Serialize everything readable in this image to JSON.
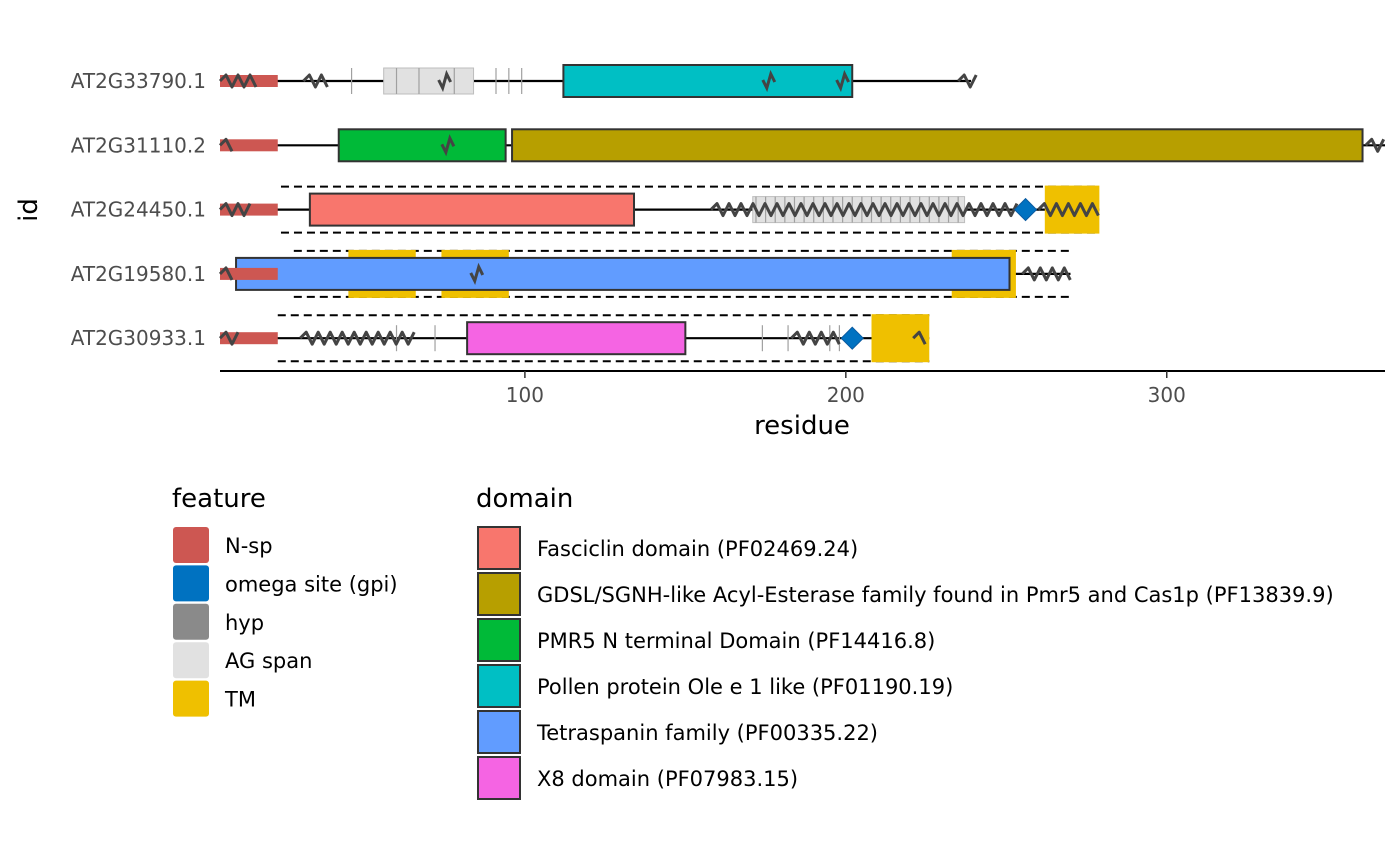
{
  "chart_data": {
    "type": "domain-architecture",
    "xlabel": "residue",
    "ylabel": "id",
    "xlim": [
      5,
      368
    ],
    "x_ticks": [
      100,
      200,
      300
    ],
    "grid": false,
    "proteins": [
      {
        "id": "AT2G33790.1",
        "length": 239,
        "signal": [
          1,
          23
        ],
        "domains": [
          {
            "name": "Pollen protein Ole e 1 like (PF01190.19)",
            "start": 112,
            "end": 202
          }
        ],
        "ag_spans": [
          [
            56,
            84
          ]
        ],
        "hyp": [
          46,
          60,
          67,
          78,
          91,
          95,
          99
        ],
        "tm": [],
        "omega": null,
        "gpi_span": null,
        "wavy": [
          [
            5,
            17
          ],
          [
            31,
            39
          ],
          [
            235,
            241
          ]
        ],
        "ticks": [
          75,
          176,
          199
        ]
      },
      {
        "id": "AT2G31110.2",
        "length": 368,
        "signal": [
          1,
          23
        ],
        "domains": [
          {
            "name": "PMR5 N terminal Domain (PF14416.8)",
            "start": 42,
            "end": 94
          },
          {
            "name": "GDSL/SGNH-like Acyl-Esterase family found in Pmr5 and Cas1p (PF13839.9)",
            "start": 96,
            "end": 361
          }
        ],
        "ag_spans": [],
        "hyp": [],
        "tm": [],
        "omega": null,
        "gpi_span": null,
        "wavy": [
          [
            5,
            9
          ],
          [
            362,
            368
          ]
        ],
        "ticks": [
          76
        ]
      },
      {
        "id": "AT2G24450.1",
        "length": 279,
        "signal": [
          1,
          23
        ],
        "domains": [
          {
            "name": "Fasciclin domain (PF02469.24)",
            "start": 33,
            "end": 134
          }
        ],
        "ag_spans": [
          [
            171,
            237
          ]
        ],
        "hyp": [
          172,
          175,
          178,
          181,
          184,
          187,
          190,
          193,
          196,
          199,
          202,
          205,
          208,
          211,
          214,
          217,
          220,
          223,
          226,
          229,
          232,
          235
        ],
        "tm": [
          [
            262,
            279
          ]
        ],
        "omega": 256,
        "gpi_span": [
          24,
          279
        ],
        "wavy": [
          [
            5,
            15
          ],
          [
            158,
            254
          ],
          [
            260,
            279
          ]
        ],
        "ticks": []
      },
      {
        "id": "AT2G19580.1",
        "length": 270,
        "signal": [
          1,
          23
        ],
        "domains": [
          {
            "name": "Tetraspanin family (PF00335.22)",
            "start": 10,
            "end": 251
          }
        ],
        "ag_spans": [],
        "hyp": [],
        "tm": [
          [
            45,
            66
          ],
          [
            74,
            95
          ],
          [
            233,
            253
          ]
        ],
        "omega": null,
        "gpi_span": [
          28,
          270
        ],
        "wavy": [
          [
            5,
            9
          ],
          [
            255,
            270
          ]
        ],
        "ticks": [
          85
        ]
      },
      {
        "id": "AT2G30933.1",
        "length": 226,
        "signal": [
          1,
          23
        ],
        "domains": [
          {
            "name": "X8 domain (PF07983.15)",
            "start": 82,
            "end": 150
          }
        ],
        "ag_spans": [],
        "hyp": [
          60,
          72,
          174,
          182,
          195,
          198
        ],
        "tm": [
          [
            208,
            226
          ]
        ],
        "omega": 202,
        "gpi_span": [
          23,
          226
        ],
        "wavy": [
          [
            5,
            12
          ],
          [
            30,
            67
          ],
          [
            183,
            199
          ],
          [
            221,
            226
          ]
        ],
        "ticks": []
      }
    ],
    "legend_feature": {
      "title": "feature",
      "items": [
        {
          "label": "N-sp",
          "color": "#cd5752"
        },
        {
          "label": "omega site (gpi)",
          "color": "#0072c1"
        },
        {
          "label": "hyp",
          "color": "#8a8a8a"
        },
        {
          "label": "AG span",
          "color": "#e1e1e1"
        },
        {
          "label": "TM",
          "color": "#efc000"
        }
      ]
    },
    "legend_domain": {
      "title": "domain",
      "items": [
        {
          "label": "Fasciclin domain (PF02469.24)",
          "color": "#f8766d"
        },
        {
          "label": "GDSL/SGNH-like Acyl-Esterase family found in Pmr5 and Cas1p (PF13839.9)",
          "color": "#b79f00"
        },
        {
          "label": "PMR5 N terminal Domain (PF14416.8)",
          "color": "#00ba38"
        },
        {
          "label": "Pollen protein Ole e 1 like (PF01190.19)",
          "color": "#00bfc4"
        },
        {
          "label": "Tetraspanin family (PF00335.22)",
          "color": "#619cff"
        },
        {
          "label": "X8 domain (PF07983.15)",
          "color": "#f564e3"
        }
      ]
    }
  }
}
